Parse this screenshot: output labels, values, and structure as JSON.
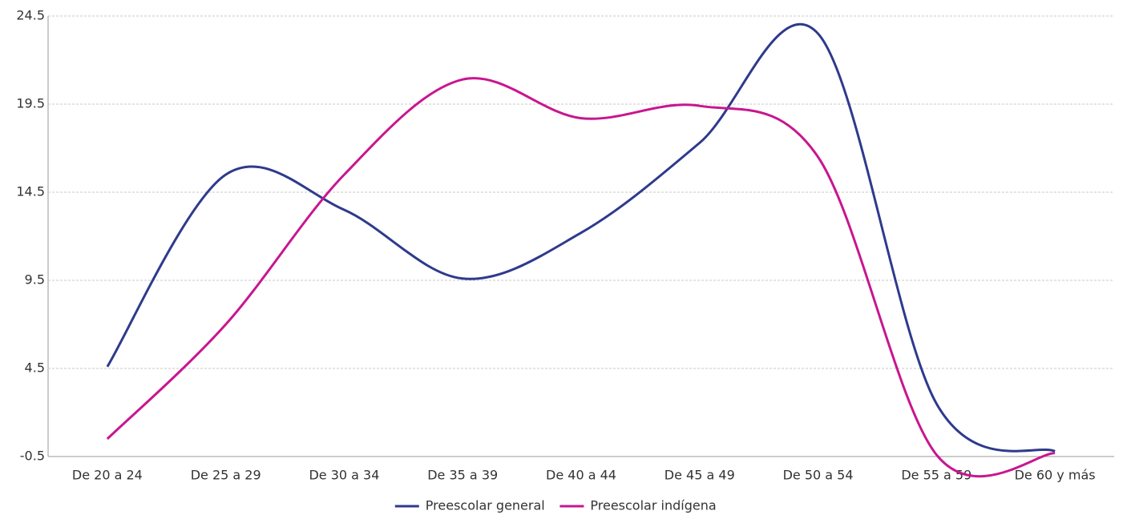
{
  "chart_data": {
    "type": "line",
    "categories": [
      "De 20 a 24",
      "De 25 a 29",
      "De 30 a 34",
      "De 35 a 39",
      "De 40 a 44",
      "De 45 a 49",
      "De 50 a 54",
      "De 55 a 59",
      "De 60 y más"
    ],
    "series": [
      {
        "name": "Preescolar general",
        "color": "#2e3a8c",
        "values": [
          4.6,
          15.5,
          13.5,
          9.6,
          12.2,
          17.3,
          23.5,
          2.5,
          -0.2
        ]
      },
      {
        "name": "Preescolar indígena",
        "color": "#c8168f",
        "values": [
          0.5,
          7.0,
          15.5,
          20.9,
          18.7,
          19.4,
          16.5,
          -0.4,
          -0.3
        ]
      }
    ],
    "ylim": [
      -0.5,
      24.5
    ],
    "yticks": [
      -0.5,
      4.5,
      9.5,
      14.5,
      19.5,
      24.5
    ],
    "grid": true,
    "legend": "bottom"
  }
}
